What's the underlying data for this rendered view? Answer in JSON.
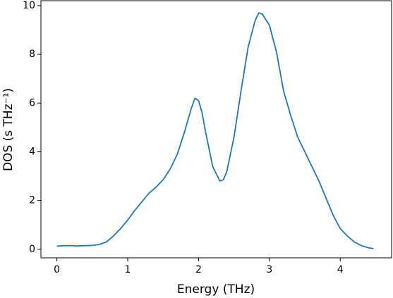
{
  "chart_data": {
    "type": "line",
    "xlabel": "Energy (THz)",
    "ylabel": "DOS (s THz⁻¹)",
    "x": [
      0,
      0.1,
      0.2,
      0.3,
      0.4,
      0.5,
      0.6,
      0.7,
      0.8,
      0.9,
      1.0,
      1.1,
      1.2,
      1.3,
      1.4,
      1.5,
      1.6,
      1.7,
      1.8,
      1.9,
      1.95,
      2.0,
      2.05,
      2.1,
      2.2,
      2.3,
      2.35,
      2.4,
      2.5,
      2.6,
      2.7,
      2.8,
      2.85,
      2.9,
      3.0,
      3.1,
      3.2,
      3.3,
      3.4,
      3.5,
      3.6,
      3.7,
      3.8,
      3.9,
      4.0,
      4.1,
      4.2,
      4.3,
      4.4,
      4.47
    ],
    "series": [
      {
        "name": "DOS",
        "color": "#1f77b4",
        "values": [
          0.13,
          0.15,
          0.15,
          0.14,
          0.15,
          0.16,
          0.2,
          0.3,
          0.55,
          0.85,
          1.2,
          1.6,
          1.95,
          2.3,
          2.55,
          2.85,
          3.3,
          3.9,
          4.8,
          5.8,
          6.2,
          6.1,
          5.6,
          4.8,
          3.4,
          2.8,
          2.85,
          3.2,
          4.6,
          6.5,
          8.3,
          9.4,
          9.7,
          9.65,
          9.2,
          8.1,
          6.5,
          5.5,
          4.6,
          4.0,
          3.4,
          2.8,
          2.1,
          1.4,
          0.85,
          0.55,
          0.3,
          0.15,
          0.06,
          0.03
        ]
      }
    ],
    "xlim": [
      -0.225,
      4.725
    ],
    "xticks": [
      0,
      1,
      2,
      3,
      4
    ],
    "ylim": [
      -0.35,
      10.2
    ],
    "yticks": [
      0,
      2,
      4,
      6,
      8,
      10
    ]
  }
}
